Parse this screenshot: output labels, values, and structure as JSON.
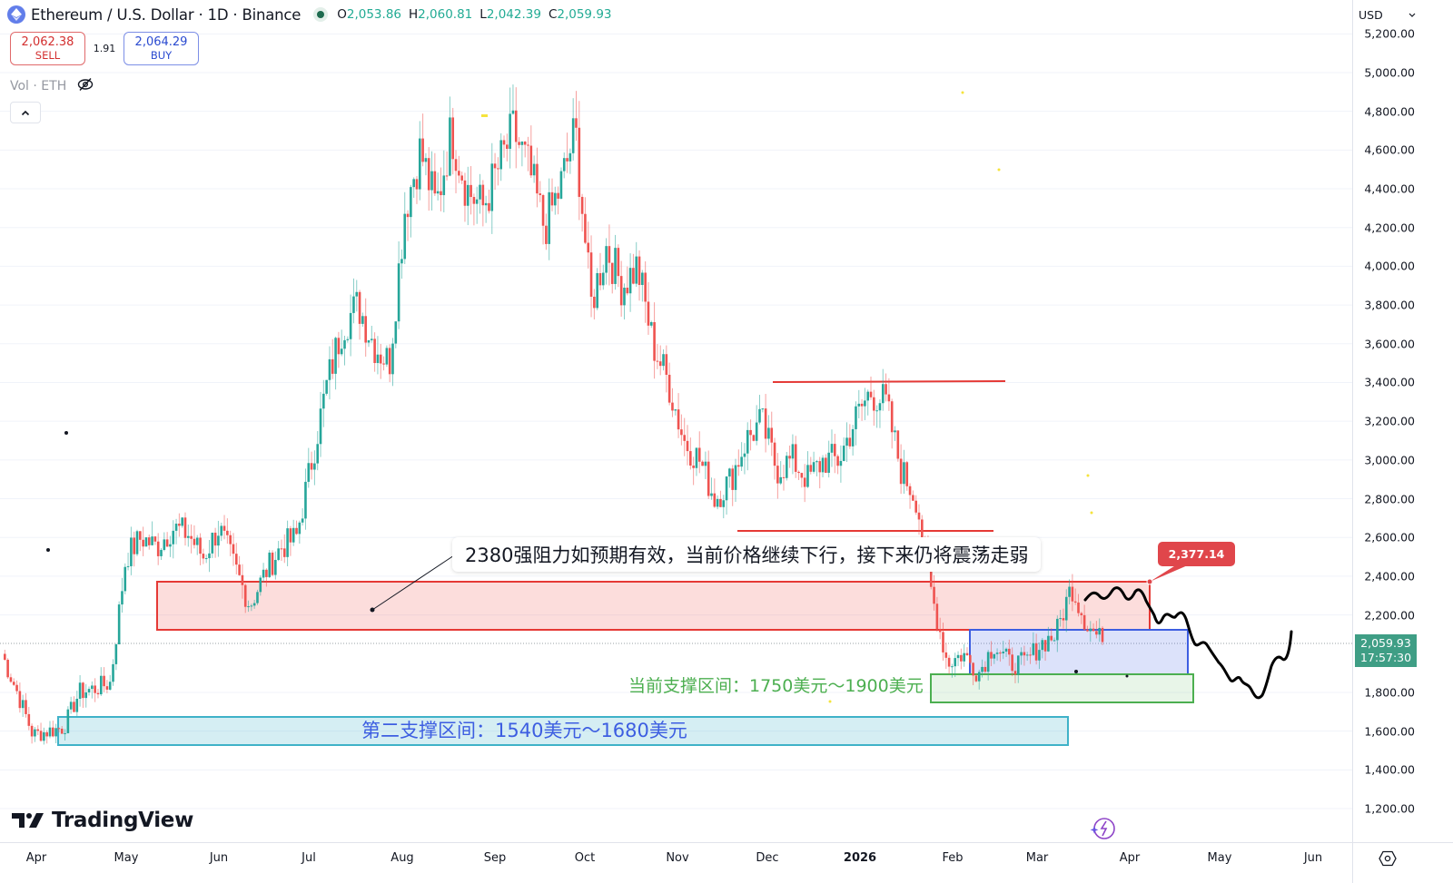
{
  "header": {
    "symbol_title": "Ethereum / U.S. Dollar · 1D · Binance",
    "ohlc": [
      {
        "k": "O",
        "v": "2,053.86"
      },
      {
        "k": "H",
        "v": "2,060.81"
      },
      {
        "k": "L",
        "v": "2,042.39"
      },
      {
        "k": "C",
        "v": "2,059.93"
      }
    ]
  },
  "trade": {
    "sell_price": "2,062.38",
    "sell_label": "SELL",
    "spread": "1.91",
    "buy_price": "2,064.29",
    "buy_label": "BUY"
  },
  "volume_indicator": {
    "label": "Vol · ETH"
  },
  "currency_selector": {
    "value": "USD"
  },
  "last_price_tag": {
    "price": "2,059.93",
    "countdown": "17:57:30"
  },
  "annotations": {
    "resistance_note": "2380强阻力如预期有效，当前价格继续下行，接下来仍将震荡走弱",
    "current_support": "当前支撑区间：1750美元～1900美元",
    "second_support": "第二支撑区间：1540美元～1680美元",
    "price_callout": "2,377.14"
  },
  "branding": {
    "logo_text": "TradingView"
  },
  "colors": {
    "up": "#26a69a",
    "down": "#ef5350",
    "resistance_zone": "#e53935",
    "current_support_zone": "#3d5ee1",
    "green_zone": "#4caf50",
    "second_support_zone": "#3fb2c8",
    "last_price": "#3f9e85"
  },
  "chart_data": {
    "type": "candlestick",
    "title": "Ethereum / U.S. Dollar · 1D · Binance",
    "xlabel": "",
    "ylabel": "USD",
    "x_ticks": [
      "Apr",
      "May",
      "Jun",
      "Jul",
      "Aug",
      "Sep",
      "Oct",
      "Nov",
      "Dec",
      "2026",
      "Feb",
      "Mar",
      "Apr",
      "May",
      "Jun"
    ],
    "y_ticks": [
      "5,200.00",
      "5,000.00",
      "4,800.00",
      "4,600.00",
      "4,400.00",
      "4,200.00",
      "4,000.00",
      "3,800.00",
      "3,600.00",
      "3,400.00",
      "3,200.00",
      "3,000.00",
      "2,800.00",
      "2,600.00",
      "2,400.00",
      "2,200.00",
      "1,800.00",
      "1,600.00",
      "1,400.00",
      "1,200.00"
    ],
    "ylim": [
      1100,
      5250
    ],
    "grid": true,
    "approx_closes_by_month": [
      {
        "month": "Apr 2025",
        "closes": [
          2000,
          1800,
          1580,
          1600,
          1620,
          1800
        ]
      },
      {
        "month": "May 2025",
        "closes": [
          1820,
          1850,
          2500,
          2600,
          2550,
          2650
        ]
      },
      {
        "month": "Jun 2025",
        "closes": [
          2620,
          2500,
          2650,
          2450,
          2250,
          2420
        ]
      },
      {
        "month": "Jul 2025",
        "closes": [
          2550,
          2600,
          3000,
          3400,
          3700,
          3800
        ]
      },
      {
        "month": "Aug 2025",
        "closes": [
          3600,
          3500,
          4300,
          4600,
          4300,
          4700
        ]
      },
      {
        "month": "Sep 2025",
        "closes": [
          4400,
          4300,
          4500,
          4700,
          4500,
          4200
        ]
      },
      {
        "month": "Oct 2025",
        "closes": [
          4400,
          4700,
          3800,
          4100,
          3900,
          4000
        ]
      },
      {
        "month": "Nov 2025",
        "closes": [
          3600,
          3400,
          3100,
          3000,
          2800,
          2900
        ]
      },
      {
        "month": "Dec 2025",
        "closes": [
          3100,
          3200,
          2950,
          3000,
          2900,
          3000
        ]
      },
      {
        "month": "Jan 2026",
        "closes": [
          3000,
          3200,
          3350,
          3300,
          2950,
          2800
        ]
      },
      {
        "month": "Feb 2026",
        "closes": [
          2300,
          1950,
          2000,
          1900,
          2050,
          1950
        ]
      },
      {
        "month": "Mar 2026",
        "closes": [
          1950,
          2050,
          2100,
          2350,
          2150,
          2060
        ]
      }
    ],
    "last": {
      "open": 2053.86,
      "high": 2060.81,
      "low": 2042.39,
      "close": 2059.93
    },
    "zones": [
      {
        "name": "resistance",
        "low": 2130,
        "high": 2380,
        "color": "#e53935"
      },
      {
        "name": "current_support_box",
        "low": 1910,
        "high": 2130,
        "color": "#3d5ee1"
      },
      {
        "name": "current_support",
        "low": 1750,
        "high": 1900,
        "color": "#4caf50"
      },
      {
        "name": "second_support",
        "low": 1540,
        "high": 1680,
        "color": "#3fb2c8"
      }
    ],
    "horizontal_lines": [
      3405,
      2640
    ],
    "projection": "wavy black line from ~2,300 (late Mar) declining to ~1,800 (mid May) then rising to ~2,100 (late May)"
  }
}
